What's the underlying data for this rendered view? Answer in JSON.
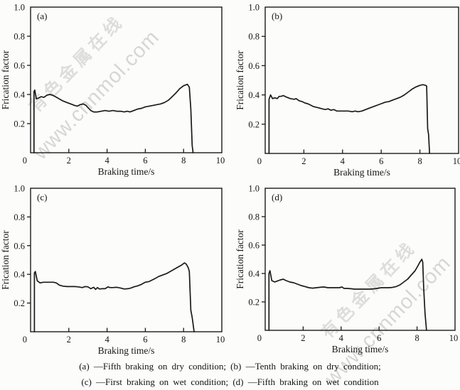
{
  "caption": {
    "line1": "(a) —Fifth braking on dry condition; (b) —Tenth braking on dry condition;",
    "line2": "(c) —First braking on wet condition; (d) —Fifth braking on wet condition"
  },
  "watermark": {
    "site": "www.cnnmol.com",
    "cn": "有色金属在线",
    "color": "#d6d6d6"
  },
  "colors": {
    "curve": "#1a1a1a",
    "frame": "#1a1a1a",
    "background": "#fcfcfa"
  },
  "chart_data": [
    {
      "type": "line",
      "panel": "(a)",
      "name": "Fifth braking on dry condition",
      "xlabel": "Braking time/s",
      "ylabel": "Frication factor",
      "xlim": [
        0,
        10
      ],
      "ylim": [
        0,
        1.0
      ],
      "xticks": [
        0,
        2,
        4,
        6,
        8,
        10
      ],
      "yticks": [
        0,
        0.2,
        0.4,
        0.6,
        0.8,
        1.0
      ],
      "x": [
        0.18,
        0.18,
        0.22,
        0.3,
        0.4,
        0.55,
        0.7,
        0.85,
        1.0,
        1.15,
        1.3,
        1.5,
        1.7,
        1.9,
        2.1,
        2.3,
        2.45,
        2.6,
        2.75,
        2.9,
        3.0,
        3.15,
        3.3,
        3.5,
        3.7,
        3.9,
        4.1,
        4.3,
        4.5,
        4.7,
        4.9,
        5.05,
        5.2,
        5.4,
        5.6,
        5.8,
        6.0,
        6.2,
        6.4,
        6.6,
        6.8,
        7.0,
        7.2,
        7.4,
        7.6,
        7.8,
        8.0,
        8.1,
        8.2,
        8.3,
        8.38,
        8.45,
        8.5
      ],
      "y": [
        0,
        0.42,
        0.43,
        0.37,
        0.375,
        0.385,
        0.38,
        0.395,
        0.4,
        0.395,
        0.385,
        0.37,
        0.355,
        0.345,
        0.335,
        0.325,
        0.32,
        0.33,
        0.335,
        0.325,
        0.31,
        0.29,
        0.28,
        0.28,
        0.285,
        0.29,
        0.285,
        0.29,
        0.285,
        0.285,
        0.28,
        0.285,
        0.28,
        0.29,
        0.3,
        0.305,
        0.315,
        0.32,
        0.325,
        0.33,
        0.335,
        0.345,
        0.36,
        0.385,
        0.41,
        0.44,
        0.46,
        0.465,
        0.47,
        0.45,
        0.3,
        0.05,
        0
      ]
    },
    {
      "type": "line",
      "panel": "(b)",
      "name": "Tenth braking on dry condition",
      "xlabel": "Braking time/s",
      "ylabel": "Frication factor",
      "xlim": [
        0,
        10
      ],
      "ylim": [
        0,
        1.0
      ],
      "xticks": [
        0,
        2,
        4,
        6,
        8,
        10
      ],
      "yticks": [
        0,
        0.2,
        0.4,
        0.6,
        0.8,
        1.0
      ],
      "x": [
        0.2,
        0.2,
        0.28,
        0.38,
        0.5,
        0.62,
        0.72,
        0.8,
        0.95,
        1.1,
        1.3,
        1.5,
        1.6,
        1.75,
        1.9,
        2.05,
        2.2,
        2.35,
        2.5,
        2.65,
        2.8,
        2.95,
        3.1,
        3.25,
        3.4,
        3.55,
        3.7,
        3.85,
        4.0,
        4.15,
        4.3,
        4.5,
        4.65,
        4.8,
        5.0,
        5.2,
        5.4,
        5.6,
        5.8,
        6.0,
        6.2,
        6.4,
        6.6,
        6.8,
        7.0,
        7.2,
        7.4,
        7.6,
        7.8,
        8.0,
        8.15,
        8.3,
        8.35,
        8.4,
        8.45,
        8.5
      ],
      "y": [
        0,
        0.37,
        0.4,
        0.375,
        0.38,
        0.375,
        0.39,
        0.39,
        0.395,
        0.385,
        0.375,
        0.37,
        0.375,
        0.36,
        0.355,
        0.345,
        0.34,
        0.33,
        0.32,
        0.315,
        0.31,
        0.305,
        0.3,
        0.305,
        0.295,
        0.3,
        0.29,
        0.29,
        0.29,
        0.29,
        0.29,
        0.285,
        0.29,
        0.285,
        0.29,
        0.3,
        0.31,
        0.32,
        0.33,
        0.34,
        0.35,
        0.355,
        0.365,
        0.375,
        0.385,
        0.4,
        0.42,
        0.44,
        0.455,
        0.465,
        0.47,
        0.465,
        0.46,
        0.17,
        0.13,
        0
      ]
    },
    {
      "type": "line",
      "panel": "(c)",
      "name": "First braking on wet condition",
      "xlabel": "Braking time/s",
      "ylabel": "Frication factor",
      "xlim": [
        0,
        10
      ],
      "ylim": [
        0,
        1.0
      ],
      "xticks": [
        0,
        2,
        4,
        6,
        8,
        10
      ],
      "yticks": [
        0,
        0.2,
        0.4,
        0.6,
        0.8,
        1.0
      ],
      "x": [
        0.2,
        0.2,
        0.25,
        0.35,
        0.5,
        0.65,
        0.8,
        1.0,
        1.2,
        1.35,
        1.5,
        1.7,
        1.9,
        2.1,
        2.3,
        2.5,
        2.7,
        2.85,
        3.0,
        3.15,
        3.3,
        3.4,
        3.5,
        3.6,
        3.75,
        3.9,
        4.05,
        4.15,
        4.3,
        4.5,
        4.7,
        4.9,
        5.1,
        5.25,
        5.4,
        5.6,
        5.8,
        6.0,
        6.2,
        6.35,
        6.5,
        6.7,
        6.9,
        7.1,
        7.3,
        7.5,
        7.7,
        7.9,
        8.05,
        8.15,
        8.25,
        8.3,
        8.38,
        8.45,
        8.55
      ],
      "y": [
        0,
        0.41,
        0.42,
        0.355,
        0.34,
        0.345,
        0.345,
        0.345,
        0.345,
        0.34,
        0.325,
        0.318,
        0.315,
        0.315,
        0.315,
        0.313,
        0.308,
        0.315,
        0.313,
        0.3,
        0.31,
        0.295,
        0.308,
        0.298,
        0.3,
        0.3,
        0.313,
        0.308,
        0.308,
        0.31,
        0.305,
        0.298,
        0.3,
        0.305,
        0.313,
        0.32,
        0.33,
        0.345,
        0.35,
        0.36,
        0.37,
        0.385,
        0.395,
        0.405,
        0.42,
        0.435,
        0.45,
        0.465,
        0.48,
        0.47,
        0.445,
        0.42,
        0.15,
        0.1,
        0
      ]
    },
    {
      "type": "line",
      "panel": "(d)",
      "name": "Fifth braking on wet condition",
      "xlabel": "Braking time/s",
      "ylabel": "Frication factor",
      "xlim": [
        0,
        10
      ],
      "ylim": [
        0,
        1.0
      ],
      "xticks": [
        0,
        2,
        4,
        6,
        8,
        10
      ],
      "yticks": [
        0,
        0.2,
        0.4,
        0.6,
        0.8,
        1.0
      ],
      "x": [
        0.2,
        0.2,
        0.25,
        0.35,
        0.5,
        0.65,
        0.8,
        0.95,
        1.1,
        1.3,
        1.5,
        1.7,
        1.9,
        2.1,
        2.3,
        2.5,
        2.7,
        2.9,
        3.1,
        3.3,
        3.5,
        3.7,
        3.9,
        4.05,
        4.15,
        4.3,
        4.5,
        4.7,
        4.9,
        5.1,
        5.3,
        5.5,
        5.7,
        5.9,
        6.1,
        6.3,
        6.5,
        6.7,
        6.9,
        7.1,
        7.3,
        7.5,
        7.7,
        7.9,
        8.05,
        8.15,
        8.25,
        8.3,
        8.35,
        8.42,
        8.5
      ],
      "y": [
        0,
        0.4,
        0.42,
        0.35,
        0.34,
        0.348,
        0.355,
        0.36,
        0.35,
        0.34,
        0.335,
        0.325,
        0.315,
        0.308,
        0.3,
        0.297,
        0.3,
        0.303,
        0.305,
        0.3,
        0.3,
        0.3,
        0.3,
        0.305,
        0.295,
        0.295,
        0.293,
        0.29,
        0.29,
        0.29,
        0.29,
        0.29,
        0.292,
        0.295,
        0.3,
        0.3,
        0.3,
        0.302,
        0.308,
        0.32,
        0.34,
        0.36,
        0.39,
        0.42,
        0.455,
        0.48,
        0.5,
        0.48,
        0.3,
        0.12,
        0
      ]
    }
  ]
}
